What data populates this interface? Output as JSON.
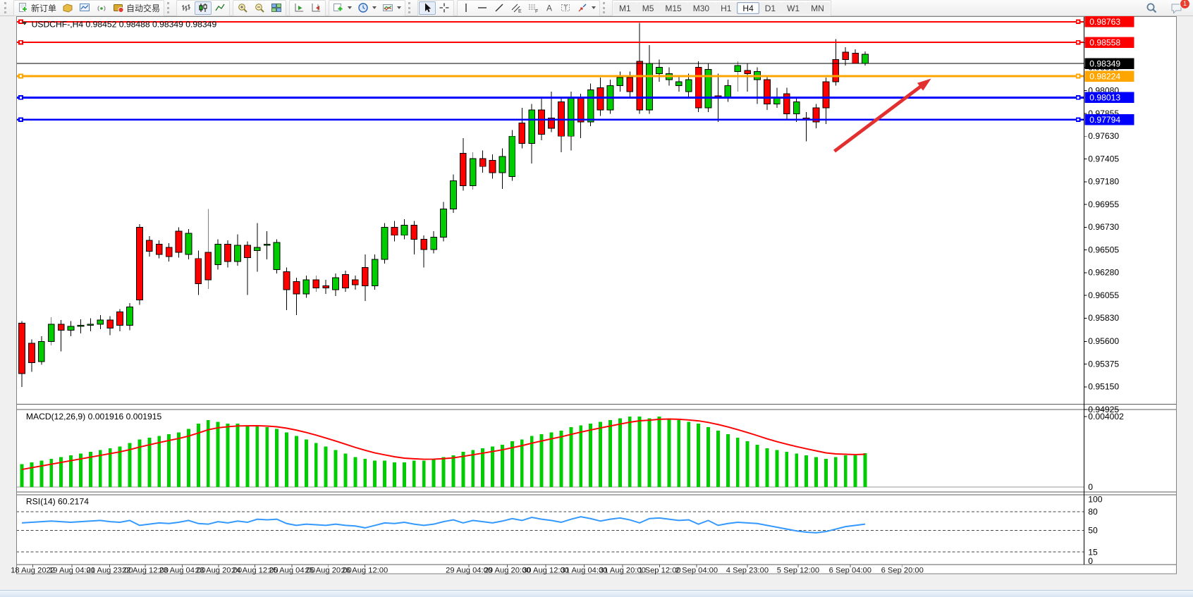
{
  "toolbar": {
    "new_order_label": "新订单",
    "autotrading_label": "自动交易",
    "timeframe_labels": [
      "M1",
      "M5",
      "M15",
      "M30",
      "H1",
      "H4",
      "D1",
      "W1",
      "MN"
    ],
    "active_timeframe": "H4",
    "notification_badge": "1"
  },
  "chart": {
    "title_symbol": "USDCHF-,H4",
    "title_ohlc": "0.98452 0.98488 0.98349 0.98349",
    "background": "#ffffff",
    "bull_color": "#00cd00",
    "bear_color": "#ff0000",
    "outline_color": "#000000",
    "price_axis_ticks": [
      "0.98555",
      "0.98310",
      "0.98080",
      "0.97855",
      "0.97630",
      "0.97405",
      "0.97180",
      "0.96955",
      "0.96730",
      "0.96505",
      "0.96280",
      "0.96055",
      "0.95830",
      "0.95600",
      "0.95375",
      "0.95150",
      "0.94925"
    ],
    "price_lines": [
      {
        "name": "resistance-line-1",
        "price": 0.98763,
        "label": "0.98763",
        "color": "#ff0000",
        "width": 2,
        "handles": true
      },
      {
        "name": "resistance-line-2",
        "price": 0.98558,
        "label": "0.98558",
        "color": "#ff0000",
        "width": 2,
        "handles": true
      },
      {
        "name": "bid-price-line",
        "price": 0.98349,
        "label": "0.98349",
        "color": "#000000",
        "width": 1,
        "handles": false
      },
      {
        "name": "pivot-line",
        "price": 0.98224,
        "label": "0.98224",
        "color": "#ffa500",
        "width": 3,
        "handles": true
      },
      {
        "name": "support-line-1",
        "price": 0.98013,
        "label": "0.98013",
        "color": "#0000ff",
        "width": 3,
        "handles": true
      },
      {
        "name": "support-line-2",
        "price": 0.97794,
        "label": "0.97794",
        "color": "#0000ff",
        "width": 3,
        "handles": true
      }
    ],
    "trend_arrow": {
      "color": "#e23030",
      "from": [
        1193,
        220
      ],
      "to": [
        1334,
        114
      ]
    },
    "candles_ohlc": [
      [
        0.9578,
        0.958,
        0.9515,
        0.9528
      ],
      [
        0.9558,
        0.9562,
        0.953,
        0.9539
      ],
      [
        0.954,
        0.9565,
        0.9537,
        0.956
      ],
      [
        0.956,
        0.9584,
        0.9556,
        0.9577
      ],
      [
        0.9577,
        0.9581,
        0.955,
        0.9571
      ],
      [
        0.9571,
        0.958,
        0.9565,
        0.9575
      ],
      [
        0.9575,
        0.9582,
        0.9568,
        0.9576
      ],
      [
        0.9576,
        0.9583,
        0.957,
        0.9577
      ],
      [
        0.9577,
        0.9586,
        0.9572,
        0.9581
      ],
      [
        0.9581,
        0.9585,
        0.9566,
        0.9573
      ],
      [
        0.9589,
        0.9592,
        0.957,
        0.9576
      ],
      [
        0.9576,
        0.9598,
        0.9571,
        0.9594
      ],
      [
        0.9673,
        0.9676,
        0.9596,
        0.9601
      ],
      [
        0.966,
        0.9664,
        0.9644,
        0.9649
      ],
      [
        0.9656,
        0.966,
        0.9642,
        0.9646
      ],
      [
        0.9653,
        0.9657,
        0.9639,
        0.9644
      ],
      [
        0.9669,
        0.9673,
        0.9643,
        0.9648
      ],
      [
        0.9646,
        0.9671,
        0.9641,
        0.9667
      ],
      [
        0.9642,
        0.965,
        0.9606,
        0.9617
      ],
      [
        0.9648,
        0.9691,
        0.9612,
        0.9621
      ],
      [
        0.9636,
        0.9661,
        0.9631,
        0.9656
      ],
      [
        0.9656,
        0.966,
        0.9633,
        0.9639
      ],
      [
        0.9639,
        0.9666,
        0.9635,
        0.9655
      ],
      [
        0.9655,
        0.9659,
        0.9606,
        0.9643
      ],
      [
        0.965,
        0.9677,
        0.9629,
        0.9653
      ],
      [
        0.9655,
        0.9669,
        0.9641,
        0.9656
      ],
      [
        0.9631,
        0.9661,
        0.9627,
        0.9658
      ],
      [
        0.9629,
        0.9633,
        0.9591,
        0.9611
      ],
      [
        0.9619,
        0.9623,
        0.9586,
        0.9607
      ],
      [
        0.9607,
        0.9625,
        0.9603,
        0.9621
      ],
      [
        0.9621,
        0.9625,
        0.9609,
        0.9613
      ],
      [
        0.9615,
        0.9621,
        0.9607,
        0.9613
      ],
      [
        0.9611,
        0.9627,
        0.9605,
        0.9623
      ],
      [
        0.9626,
        0.963,
        0.9609,
        0.9613
      ],
      [
        0.9621,
        0.9625,
        0.9611,
        0.9616
      ],
      [
        0.9633,
        0.9646,
        0.96,
        0.9615
      ],
      [
        0.9615,
        0.9646,
        0.9611,
        0.9641
      ],
      [
        0.9641,
        0.9677,
        0.9637,
        0.9673
      ],
      [
        0.9673,
        0.9679,
        0.9659,
        0.9665
      ],
      [
        0.9665,
        0.9681,
        0.9661,
        0.9675
      ],
      [
        0.9675,
        0.9679,
        0.9646,
        0.9661
      ],
      [
        0.9661,
        0.9665,
        0.9633,
        0.9651
      ],
      [
        0.9651,
        0.9669,
        0.9647,
        0.9663
      ],
      [
        0.9663,
        0.9698,
        0.9659,
        0.9691
      ],
      [
        0.9691,
        0.9725,
        0.9687,
        0.9719
      ],
      [
        0.9746,
        0.9761,
        0.9709,
        0.9714
      ],
      [
        0.9714,
        0.9747,
        0.971,
        0.9741
      ],
      [
        0.9741,
        0.9749,
        0.9727,
        0.9733
      ],
      [
        0.9739,
        0.9745,
        0.9721,
        0.9727
      ],
      [
        0.9727,
        0.9751,
        0.9711,
        0.9743
      ],
      [
        0.9723,
        0.9769,
        0.9719,
        0.9763
      ],
      [
        0.9776,
        0.9791,
        0.9751,
        0.9756
      ],
      [
        0.9756,
        0.9795,
        0.9736,
        0.9789
      ],
      [
        0.9789,
        0.9801,
        0.9759,
        0.9765
      ],
      [
        0.9781,
        0.9807,
        0.9767,
        0.9771
      ],
      [
        0.9797,
        0.9801,
        0.9747,
        0.9763
      ],
      [
        0.9763,
        0.9807,
        0.9749,
        0.9801
      ],
      [
        0.9801,
        0.9805,
        0.9761,
        0.9777
      ],
      [
        0.9777,
        0.9815,
        0.9773,
        0.9809
      ],
      [
        0.9811,
        0.9821,
        0.9783,
        0.9789
      ],
      [
        0.9789,
        0.9819,
        0.9785,
        0.9813
      ],
      [
        0.9813,
        0.9827,
        0.9807,
        0.9821
      ],
      [
        0.9821,
        0.9827,
        0.9801,
        0.9807
      ],
      [
        0.9837,
        0.9875,
        0.9785,
        0.9789
      ],
      [
        0.9789,
        0.9853,
        0.9785,
        0.9835
      ],
      [
        0.9825,
        0.9839,
        0.9817,
        0.9831
      ],
      [
        0.9819,
        0.9831,
        0.9813,
        0.9825
      ],
      [
        0.9813,
        0.9823,
        0.9807,
        0.9817
      ],
      [
        0.9807,
        0.9825,
        0.9801,
        0.9819
      ],
      [
        0.9831,
        0.9837,
        0.9787,
        0.9791
      ],
      [
        0.9791,
        0.9835,
        0.9787,
        0.9829
      ],
      [
        0.9803,
        0.9825,
        0.9777,
        0.9801
      ],
      [
        0.9801,
        0.9819,
        0.9797,
        0.9813
      ],
      [
        0.9827,
        0.9837,
        0.9807,
        0.9833
      ],
      [
        0.9828,
        0.9835,
        0.9807,
        0.9825
      ],
      [
        0.9819,
        0.9831,
        0.9795,
        0.9827
      ],
      [
        0.9819,
        0.9822,
        0.9789,
        0.9795
      ],
      [
        0.9795,
        0.9811,
        0.9791,
        0.9801
      ],
      [
        0.9805,
        0.9811,
        0.9779,
        0.9785
      ],
      [
        0.9785,
        0.9801,
        0.9777,
        0.9797
      ],
      [
        0.9781,
        0.9787,
        0.9758,
        0.9779
      ],
      [
        0.9791,
        0.9795,
        0.9771,
        0.9777
      ],
      [
        0.9817,
        0.9821,
        0.9775,
        0.9791
      ],
      [
        0.9839,
        0.9859,
        0.9813,
        0.9817
      ],
      [
        0.9846,
        0.9851,
        0.9833,
        0.9839
      ],
      [
        0.98452,
        0.98488,
        0.98349,
        0.98349
      ],
      [
        0.98349,
        0.9847,
        0.9833,
        0.9844
      ]
    ]
  },
  "macd": {
    "label": "MACD(12,26,9) 0.001916 0.001915",
    "axis_max": "0.004002",
    "axis_min": "0",
    "max_value": 0.004002,
    "hist_color": "#00cd00",
    "signal_color": "#ff0000",
    "histogram": [
      0.0013,
      0.0014,
      0.0015,
      0.0016,
      0.0017,
      0.0018,
      0.0019,
      0.002,
      0.0021,
      0.0022,
      0.0023,
      0.0025,
      0.0027,
      0.0028,
      0.0029,
      0.003,
      0.0031,
      0.0033,
      0.0036,
      0.0038,
      0.0037,
      0.0036,
      0.0036,
      0.0035,
      0.0035,
      0.0034,
      0.0033,
      0.0031,
      0.0029,
      0.0027,
      0.0025,
      0.0023,
      0.0021,
      0.0019,
      0.0017,
      0.0016,
      0.0015,
      0.0015,
      0.0014,
      0.0014,
      0.0015,
      0.0015,
      0.0016,
      0.0017,
      0.0018,
      0.002,
      0.0021,
      0.0022,
      0.0023,
      0.0024,
      0.0026,
      0.0027,
      0.0029,
      0.003,
      0.0031,
      0.0032,
      0.0034,
      0.0035,
      0.0036,
      0.0037,
      0.0038,
      0.0039,
      0.004,
      0.004,
      0.0039,
      0.004,
      0.0039,
      0.0038,
      0.0037,
      0.0036,
      0.0034,
      0.0032,
      0.003,
      0.0028,
      0.0026,
      0.0024,
      0.0022,
      0.0021,
      0.002,
      0.0019,
      0.0018,
      0.0017,
      0.0016,
      0.0017,
      0.0018,
      0.0018,
      0.001916
    ]
  },
  "rsi": {
    "label": "RSI(14) 60.2174",
    "axis_ticks": [
      "100",
      "80",
      "50",
      "15",
      "0"
    ],
    "level_lines": [
      80,
      50,
      15
    ],
    "line_color": "#3399ff",
    "values": [
      62,
      63,
      64,
      65,
      64,
      63,
      64,
      65,
      66,
      64,
      63,
      66,
      58,
      60,
      62,
      61,
      63,
      66,
      61,
      60,
      64,
      62,
      65,
      63,
      68,
      67,
      68,
      61,
      58,
      60,
      59,
      58,
      60,
      58,
      57,
      54,
      58,
      62,
      61,
      63,
      60,
      58,
      60,
      64,
      67,
      62,
      66,
      64,
      62,
      65,
      69,
      66,
      71,
      68,
      66,
      63,
      68,
      72,
      69,
      65,
      68,
      70,
      67,
      62,
      69,
      70,
      68,
      66,
      67,
      60,
      66,
      58,
      61,
      63,
      62,
      61,
      58,
      55,
      52,
      49,
      47,
      46,
      48,
      52,
      56,
      58,
      60
    ]
  },
  "date_axis": {
    "labels": [
      "18 Aug 2022",
      "19 Aug 04:00",
      "21 Aug 23:00",
      "22 Aug 12:00",
      "23 Aug 04:00",
      "23 Aug 20:00",
      "24 Aug 12:00",
      "25 Aug 04:00",
      "25 Aug 20:00",
      "26 Aug 12:00",
      "29 Aug 04:00",
      "29 Aug 20:00",
      "30 Aug 12:00",
      "31 Aug 04:00",
      "31 Aug 20:00",
      "1 Sep 12:00",
      "2 Sep 04:00",
      "4 Sep 23:00",
      "5 Sep 12:00",
      "6 Sep 04:00",
      "6 Sep 20:00"
    ]
  }
}
